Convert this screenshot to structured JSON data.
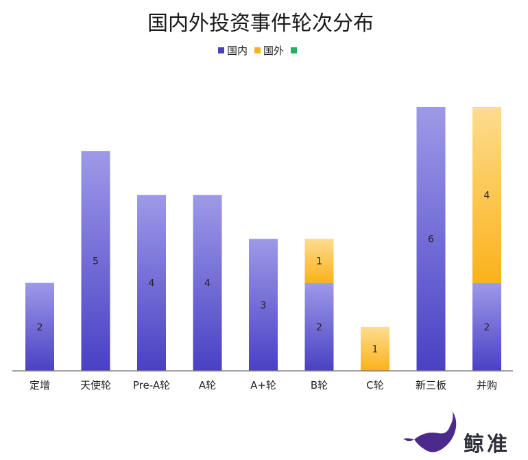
{
  "chart_data": {
    "type": "bar",
    "stacked": true,
    "title": "国内外投资事件轮次分布",
    "categories": [
      "定增",
      "天使轮",
      "Pre-A轮",
      "A轮",
      "A+轮",
      "B轮",
      "C轮",
      "新三板",
      "并购"
    ],
    "series": [
      {
        "name": "国内",
        "values": [
          2,
          5,
          4,
          4,
          3,
          2,
          0,
          6,
          2
        ]
      },
      {
        "name": "国外",
        "values": [
          0,
          0,
          0,
          0,
          0,
          1,
          1,
          0,
          4
        ]
      },
      {
        "name": "",
        "values": [
          0,
          0,
          0,
          0,
          0,
          0,
          0,
          0,
          0
        ]
      }
    ],
    "ylim": [
      0,
      6
    ],
    "grid": false,
    "legend_position": "top-center",
    "colors": {
      "国内_top": "#9d9ae8",
      "国内_bottom": "#4a40c4",
      "国外_top": "#fddc8e",
      "国外_bottom": "#fbb21a",
      "third": "#22b060",
      "axis": "#808080"
    }
  },
  "brand": {
    "name": "鲸准",
    "logo_icon": "whale-logo-icon",
    "logo_color": "#4b2a8c"
  }
}
